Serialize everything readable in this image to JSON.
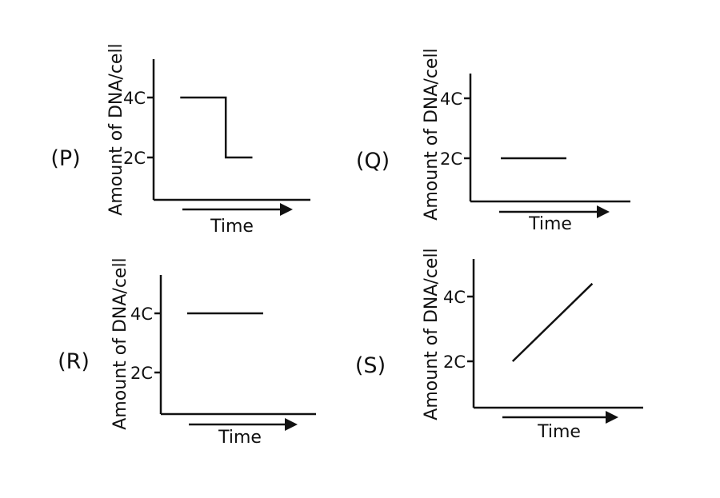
{
  "chart_data": [
    {
      "type": "line",
      "panel_label": "(P)",
      "xlabel": "Time",
      "ylabel": "Amount of DNA/cell",
      "yticks": [
        "4C",
        "2C"
      ],
      "ytick_values": [
        4,
        2
      ],
      "xlim": [
        0,
        1
      ],
      "ylim": [
        0,
        5
      ],
      "series": [
        {
          "x": [
            0.17,
            0.46,
            0.46,
            0.63
          ],
          "y": [
            4,
            4,
            2,
            2
          ]
        }
      ],
      "colors": {
        "line": "#111111"
      }
    },
    {
      "type": "line",
      "panel_label": "(Q)",
      "xlabel": "Time",
      "ylabel": "Amount of DNA/cell",
      "yticks": [
        "4C",
        "2C"
      ],
      "ytick_values": [
        4,
        2
      ],
      "xlim": [
        0,
        1
      ],
      "ylim": [
        0,
        5
      ],
      "series": [
        {
          "x": [
            0.19,
            0.6
          ],
          "y": [
            2,
            2
          ]
        }
      ],
      "colors": {
        "line": "#111111"
      }
    },
    {
      "type": "line",
      "panel_label": "(R)",
      "xlabel": "Time",
      "ylabel": "Amount of DNA/cell",
      "yticks": [
        "4C",
        "2C"
      ],
      "ytick_values": [
        4,
        2
      ],
      "xlim": [
        0,
        1
      ],
      "ylim": [
        0,
        5
      ],
      "series": [
        {
          "x": [
            0.17,
            0.66
          ],
          "y": [
            4,
            4
          ]
        }
      ],
      "colors": {
        "line": "#111111"
      }
    },
    {
      "type": "line",
      "panel_label": "(S)",
      "xlabel": "Time",
      "ylabel": "Amount of DNA/cell",
      "yticks": [
        "4C",
        "2C"
      ],
      "ytick_values": [
        4,
        2
      ],
      "xlim": [
        0,
        1
      ],
      "ylim": [
        0,
        5
      ],
      "series": [
        {
          "x": [
            0.23,
            0.7
          ],
          "y": [
            2,
            4.4
          ]
        }
      ],
      "colors": {
        "line": "#111111"
      }
    }
  ]
}
